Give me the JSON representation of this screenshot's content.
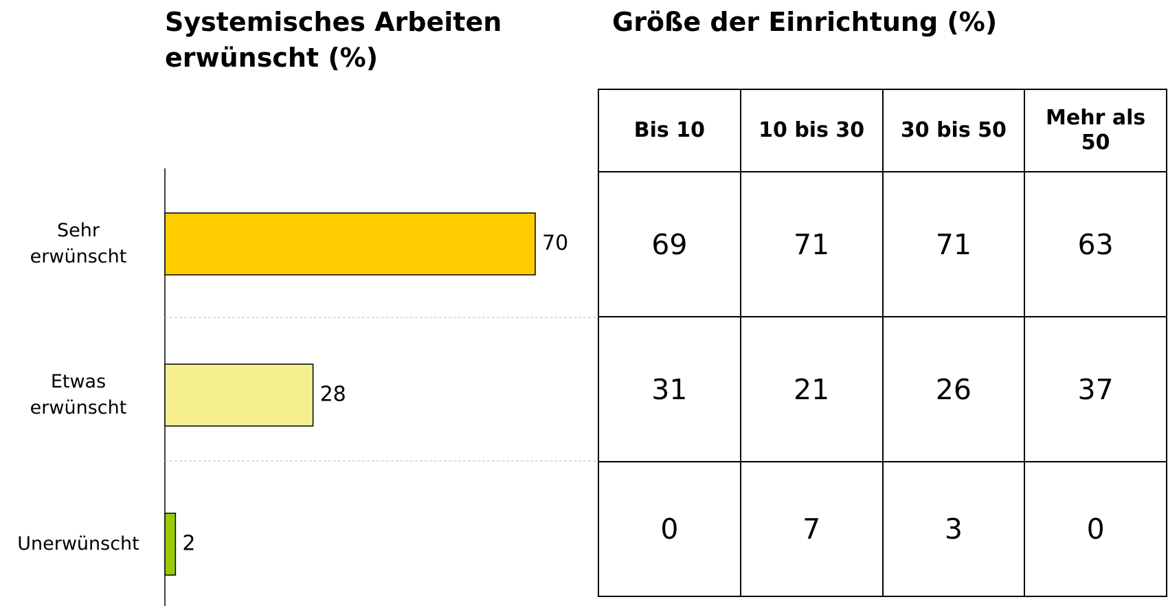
{
  "chart_data": {
    "type": "bar",
    "orientation": "horizontal",
    "title": "Systemisches Arbeiten erwünscht (%)",
    "categories": [
      "Sehr erwünscht",
      "Etwas erwünscht",
      "Unerwünscht"
    ],
    "values": [
      70,
      28,
      2
    ],
    "colors": [
      "#ffcc00",
      "#f5f08f",
      "#99cc00"
    ]
  },
  "table": {
    "title": "Größe der Einrichtung (%)",
    "columns": [
      "Bis 10",
      "10 bis 30",
      "30 bis 50",
      "Mehr als 50"
    ],
    "rows": [
      [
        69,
        71,
        71,
        63
      ],
      [
        31,
        21,
        26,
        37
      ],
      [
        0,
        7,
        3,
        0
      ]
    ]
  }
}
